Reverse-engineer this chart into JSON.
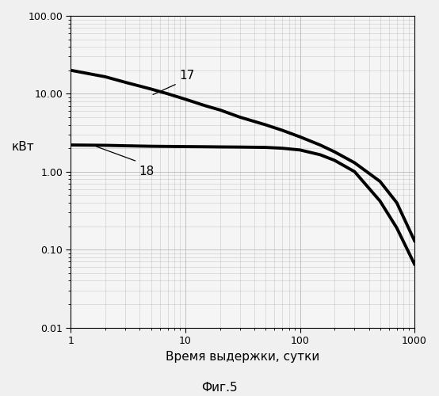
{
  "title": "",
  "xlabel": "Время выдержки, сутки",
  "ylabel": "кВт",
  "caption": "Фиг.5",
  "xlim": [
    1,
    1000
  ],
  "ylim": [
    0.01,
    100
  ],
  "background_color": "#f0f0f0",
  "plot_bg_color": "#f5f5f5",
  "grid_color": "#aaaaaa",
  "line_color": "#000000",
  "line_width": 2.8,
  "curve17_x": [
    1,
    2,
    3,
    5,
    7,
    10,
    15,
    20,
    30,
    50,
    70,
    100,
    150,
    200,
    300,
    500,
    700,
    1000
  ],
  "curve17_y": [
    20.0,
    16.5,
    14.0,
    11.5,
    10.0,
    8.5,
    7.0,
    6.2,
    5.0,
    4.0,
    3.4,
    2.8,
    2.2,
    1.8,
    1.3,
    0.75,
    0.4,
    0.13
  ],
  "curve18_x": [
    1,
    2,
    3,
    5,
    7,
    10,
    15,
    20,
    30,
    50,
    70,
    100,
    150,
    200,
    300,
    500,
    700,
    1000
  ],
  "curve18_y": [
    2.2,
    2.18,
    2.15,
    2.12,
    2.11,
    2.1,
    2.09,
    2.08,
    2.07,
    2.05,
    2.0,
    1.9,
    1.65,
    1.4,
    1.0,
    0.42,
    0.19,
    0.065
  ],
  "label17": "17",
  "label18": "18",
  "xlabel_fontsize": 11,
  "ylabel_fontsize": 11,
  "label_fontsize": 11,
  "caption_fontsize": 11,
  "tick_fontsize": 9
}
